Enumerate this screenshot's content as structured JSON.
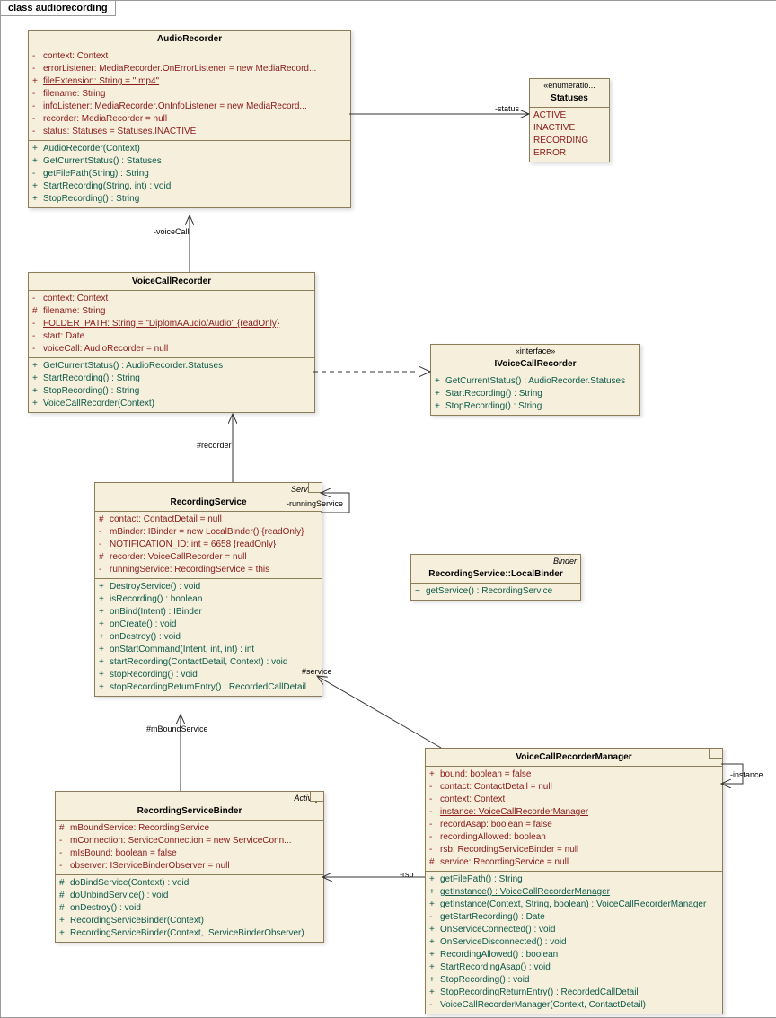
{
  "diagram_title": "class audiorecording",
  "colors": {
    "box_bg": "#f5efdc",
    "box_border": "#8b7d5a",
    "attr_color": "#8b1a1a",
    "method_color": "#0d5a4a"
  },
  "classes": {
    "AudioRecorder": {
      "name": "AudioRecorder",
      "attributes": [
        {
          "vis": "-",
          "text": "context:  Context"
        },
        {
          "vis": "-",
          "text": "errorListener:  MediaRecorder.OnErrorListener = new MediaRecord..."
        },
        {
          "vis": "+",
          "text": "fileExtension:  String = \".mp4\"",
          "underline": true
        },
        {
          "vis": "-",
          "text": "filename:  String"
        },
        {
          "vis": "-",
          "text": "infoListener:  MediaRecorder.OnInfoListener = new MediaRecord..."
        },
        {
          "vis": "-",
          "text": "recorder:  MediaRecorder = null"
        },
        {
          "vis": "-",
          "text": "status:  Statuses = Statuses.INACTIVE"
        }
      ],
      "methods": [
        {
          "vis": "+",
          "text": "AudioRecorder(Context)"
        },
        {
          "vis": "+",
          "text": "GetCurrentStatus() : Statuses"
        },
        {
          "vis": "-",
          "text": "getFilePath(String) : String"
        },
        {
          "vis": "+",
          "text": "StartRecording(String, int) : void"
        },
        {
          "vis": "+",
          "text": "StopRecording() : String"
        }
      ]
    },
    "Statuses": {
      "stereotype": "«enumeratio...",
      "name": "Statuses",
      "values": [
        "ACTIVE",
        "INACTIVE",
        "RECORDING",
        "ERROR"
      ]
    },
    "VoiceCallRecorder": {
      "name": "VoiceCallRecorder",
      "attributes": [
        {
          "vis": "-",
          "text": "context:  Context"
        },
        {
          "vis": "#",
          "text": "filename:  String"
        },
        {
          "vis": "-",
          "text": "FOLDER_PATH:  String = \"DiplomAAudio/Audio\" {readOnly}",
          "underline": true
        },
        {
          "vis": "-",
          "text": "start:  Date"
        },
        {
          "vis": "-",
          "text": "voiceCall:  AudioRecorder = null"
        }
      ],
      "methods": [
        {
          "vis": "+",
          "text": "GetCurrentStatus() : AudioRecorder.Statuses"
        },
        {
          "vis": "+",
          "text": "StartRecording() : String"
        },
        {
          "vis": "+",
          "text": "StopRecording() : String"
        },
        {
          "vis": "+",
          "text": "VoiceCallRecorder(Context)"
        }
      ]
    },
    "IVoiceCallRecorder": {
      "stereotype": "«interface»",
      "name": "IVoiceCallRecorder",
      "methods": [
        {
          "vis": "+",
          "text": "GetCurrentStatus() : AudioRecorder.Statuses"
        },
        {
          "vis": "+",
          "text": "StartRecording() : String"
        },
        {
          "vis": "+",
          "text": "StopRecording() : String"
        }
      ]
    },
    "RecordingService": {
      "stereotype": "Service",
      "name": "RecordingService",
      "attributes": [
        {
          "vis": "#",
          "text": "contact:  ContactDetail = null"
        },
        {
          "vis": "-",
          "text": "mBinder:  IBinder = new LocalBinder() {readOnly}"
        },
        {
          "vis": "-",
          "text": "NOTIFICATION_ID:  int = 6658 {readOnly}",
          "underline": true
        },
        {
          "vis": "#",
          "text": "recorder:  VoiceCallRecorder = null"
        },
        {
          "vis": "-",
          "text": "runningService:  RecordingService = this"
        }
      ],
      "methods": [
        {
          "vis": "+",
          "text": "DestroyService() : void"
        },
        {
          "vis": "+",
          "text": "isRecording() : boolean"
        },
        {
          "vis": "+",
          "text": "onBind(Intent) : IBinder"
        },
        {
          "vis": "+",
          "text": "onCreate() : void"
        },
        {
          "vis": "+",
          "text": "onDestroy() : void"
        },
        {
          "vis": "+",
          "text": "onStartCommand(Intent, int, int) : int"
        },
        {
          "vis": "+",
          "text": "startRecording(ContactDetail, Context) : void"
        },
        {
          "vis": "+",
          "text": "stopRecording() : void"
        },
        {
          "vis": "+",
          "text": "stopRecordingReturnEntry() : RecordedCallDetail"
        }
      ]
    },
    "LocalBinder": {
      "stereotype": "Binder",
      "name": "RecordingService::LocalBinder",
      "methods": [
        {
          "vis": "~",
          "text": "getService() : RecordingService"
        }
      ]
    },
    "VoiceCallRecorderManager": {
      "name": "VoiceCallRecorderManager",
      "attributes": [
        {
          "vis": "+",
          "text": "bound:  boolean = false"
        },
        {
          "vis": "-",
          "text": "contact:  ContactDetail = null"
        },
        {
          "vis": "-",
          "text": "context:  Context"
        },
        {
          "vis": "-",
          "text": "instance:  VoiceCallRecorderManager",
          "underline": true
        },
        {
          "vis": "-",
          "text": "recordAsap:  boolean = false"
        },
        {
          "vis": "-",
          "text": "recordingAllowed:  boolean"
        },
        {
          "vis": "-",
          "text": "rsb:  RecordingServiceBinder = null"
        },
        {
          "vis": "#",
          "text": "service:  RecordingService = null"
        }
      ],
      "methods": [
        {
          "vis": "+",
          "text": "getFilePath() : String"
        },
        {
          "vis": "+",
          "text": "getInstance() : VoiceCallRecorderManager",
          "underline": true
        },
        {
          "vis": "+",
          "text": "getInstance(Context, String, boolean) : VoiceCallRecorderManager",
          "underline": true
        },
        {
          "vis": "-",
          "text": "getStartRecording() : Date"
        },
        {
          "vis": "+",
          "text": "OnServiceConnected() : void"
        },
        {
          "vis": "+",
          "text": "OnServiceDisconnected() : void"
        },
        {
          "vis": "+",
          "text": "RecordingAllowed() : boolean"
        },
        {
          "vis": "+",
          "text": "StartRecordingAsap() : void"
        },
        {
          "vis": "+",
          "text": "StopRecording() : void"
        },
        {
          "vis": "+",
          "text": "StopRecordingReturnEntry() : RecordedCallDetail"
        },
        {
          "vis": "-",
          "text": "VoiceCallRecorderManager(Context, ContactDetail)"
        }
      ]
    },
    "RecordingServiceBinder": {
      "stereotype": "Activity",
      "name": "RecordingServiceBinder",
      "attributes": [
        {
          "vis": "#",
          "text": "mBoundService:  RecordingService"
        },
        {
          "vis": "-",
          "text": "mConnection:  ServiceConnection = new ServiceConn..."
        },
        {
          "vis": "-",
          "text": "mIsBound:  boolean = false"
        },
        {
          "vis": "-",
          "text": "observer:  IServiceBinderObserver = null"
        }
      ],
      "methods": [
        {
          "vis": "#",
          "text": "doBindService(Context) : void"
        },
        {
          "vis": "#",
          "text": "doUnbindService() : void"
        },
        {
          "vis": "#",
          "text": "onDestroy() : void"
        },
        {
          "vis": "+",
          "text": "RecordingServiceBinder(Context)"
        },
        {
          "vis": "+",
          "text": "RecordingServiceBinder(Context, IServiceBinderObserver)"
        }
      ]
    }
  },
  "labels": {
    "status": "-status",
    "voiceCall": "-voiceCall",
    "recorder": "#recorder",
    "runningService": "-runningService",
    "service": "#service",
    "mBoundService": "#mBoundService",
    "rsb": "-rsb",
    "instance": "-instance"
  }
}
